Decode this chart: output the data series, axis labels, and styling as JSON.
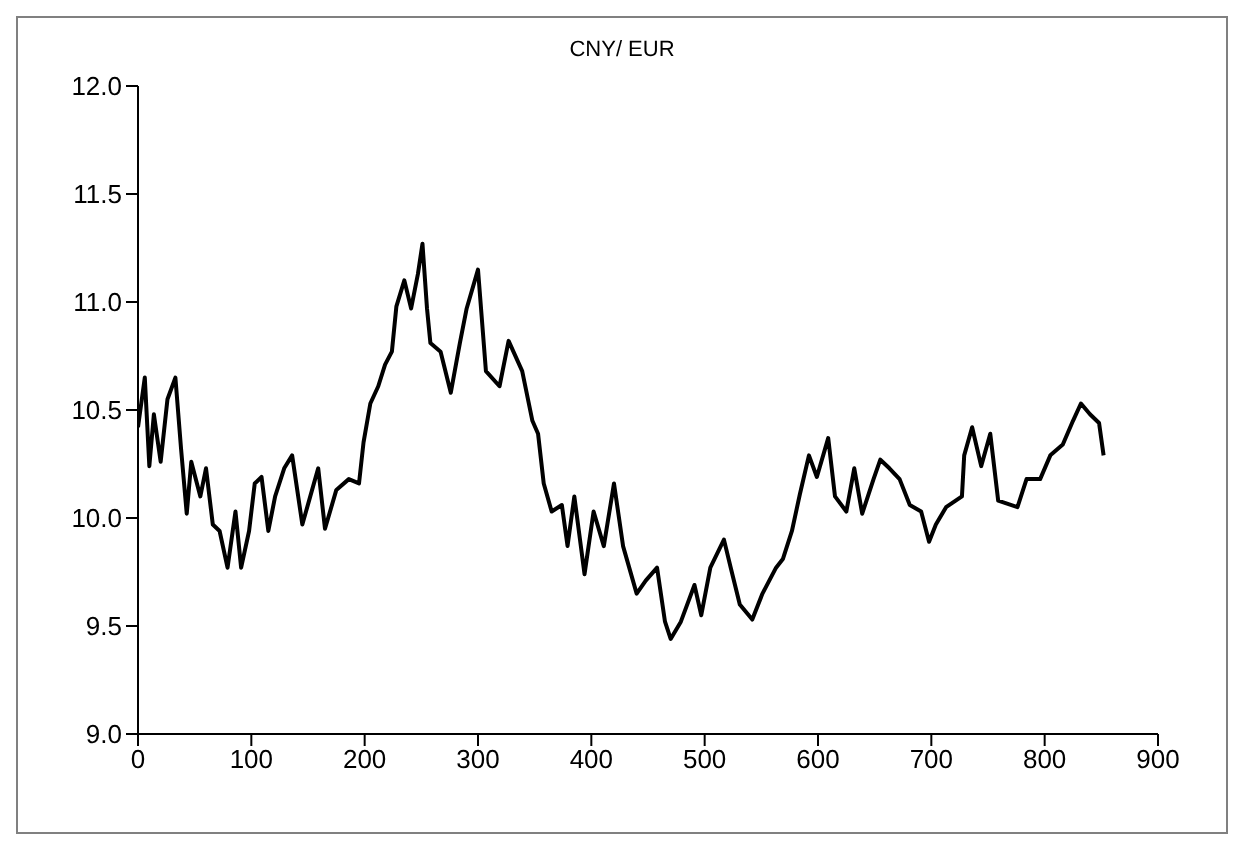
{
  "chart_data": {
    "type": "line",
    "title": "CNY/ EUR",
    "x": [
      0,
      6,
      10,
      14,
      20,
      26,
      33,
      38,
      43,
      47,
      55,
      60,
      66,
      72,
      79,
      86,
      91,
      98,
      103,
      109,
      115,
      121,
      129,
      136,
      145,
      152,
      159,
      165,
      175,
      186,
      195,
      199,
      205,
      212,
      218,
      224,
      228,
      235,
      241,
      247,
      251,
      255,
      258,
      267,
      276,
      284,
      290,
      300,
      307,
      319,
      327,
      339,
      348,
      353,
      358,
      365,
      374,
      379,
      385,
      394,
      402,
      411,
      420,
      428,
      440,
      448,
      458,
      465,
      470,
      479,
      491,
      497,
      505,
      517,
      523,
      531,
      542,
      551,
      563,
      569,
      577,
      584,
      592,
      599,
      609,
      615,
      625,
      632,
      639,
      649,
      655,
      663,
      672,
      681,
      691,
      698,
      704,
      713,
      727,
      729,
      736,
      744,
      752,
      759,
      776,
      784,
      796,
      805,
      816,
      825,
      832,
      840,
      848,
      852
    ],
    "series": [
      {
        "color": "#000000",
        "values": [
          10.42,
          10.65,
          10.24,
          10.48,
          10.26,
          10.55,
          10.65,
          10.32,
          10.02,
          10.26,
          10.1,
          10.23,
          9.97,
          9.94,
          9.77,
          10.03,
          9.77,
          9.94,
          10.16,
          10.19,
          9.94,
          10.1,
          10.23,
          10.29,
          9.97,
          10.1,
          10.23,
          9.95,
          10.13,
          10.18,
          10.16,
          10.35,
          10.53,
          10.61,
          10.71,
          10.77,
          10.98,
          11.1,
          10.97,
          11.13,
          11.27,
          10.97,
          10.81,
          10.77,
          10.58,
          10.81,
          10.97,
          11.15,
          10.68,
          10.61,
          10.82,
          10.68,
          10.45,
          10.39,
          10.16,
          10.03,
          10.06,
          9.87,
          10.1,
          9.74,
          10.03,
          9.87,
          10.16,
          9.87,
          9.65,
          9.71,
          9.77,
          9.52,
          9.44,
          9.52,
          9.69,
          9.55,
          9.77,
          9.9,
          9.77,
          9.6,
          9.53,
          9.65,
          9.77,
          9.81,
          9.94,
          10.11,
          10.29,
          10.19,
          10.37,
          10.1,
          10.03,
          10.23,
          10.02,
          10.18,
          10.27,
          10.23,
          10.18,
          10.06,
          10.03,
          9.89,
          9.97,
          10.05,
          10.1,
          10.29,
          10.42,
          10.24,
          10.39,
          10.08,
          10.05,
          10.18,
          10.18,
          10.29,
          10.34,
          10.45,
          10.53,
          10.48,
          10.44,
          10.29
        ]
      }
    ],
    "xlim": [
      0,
      900
    ],
    "xticks": [
      0,
      100,
      200,
      300,
      400,
      500,
      600,
      700,
      800,
      900
    ],
    "ylim": [
      9.0,
      12.0
    ],
    "yticks": [
      {
        "value": 9.0,
        "label": "9.0"
      },
      {
        "value": 9.5,
        "label": "9.5"
      },
      {
        "value": 10.0,
        "label": "10.0"
      },
      {
        "value": 10.5,
        "label": "10.5"
      },
      {
        "value": 11.0,
        "label": "11.0"
      },
      {
        "value": 11.5,
        "label": "11.5"
      },
      {
        "value": 12.0,
        "label": "12.0"
      }
    ],
    "grid": false,
    "marker": "none",
    "line_style": "solid"
  }
}
